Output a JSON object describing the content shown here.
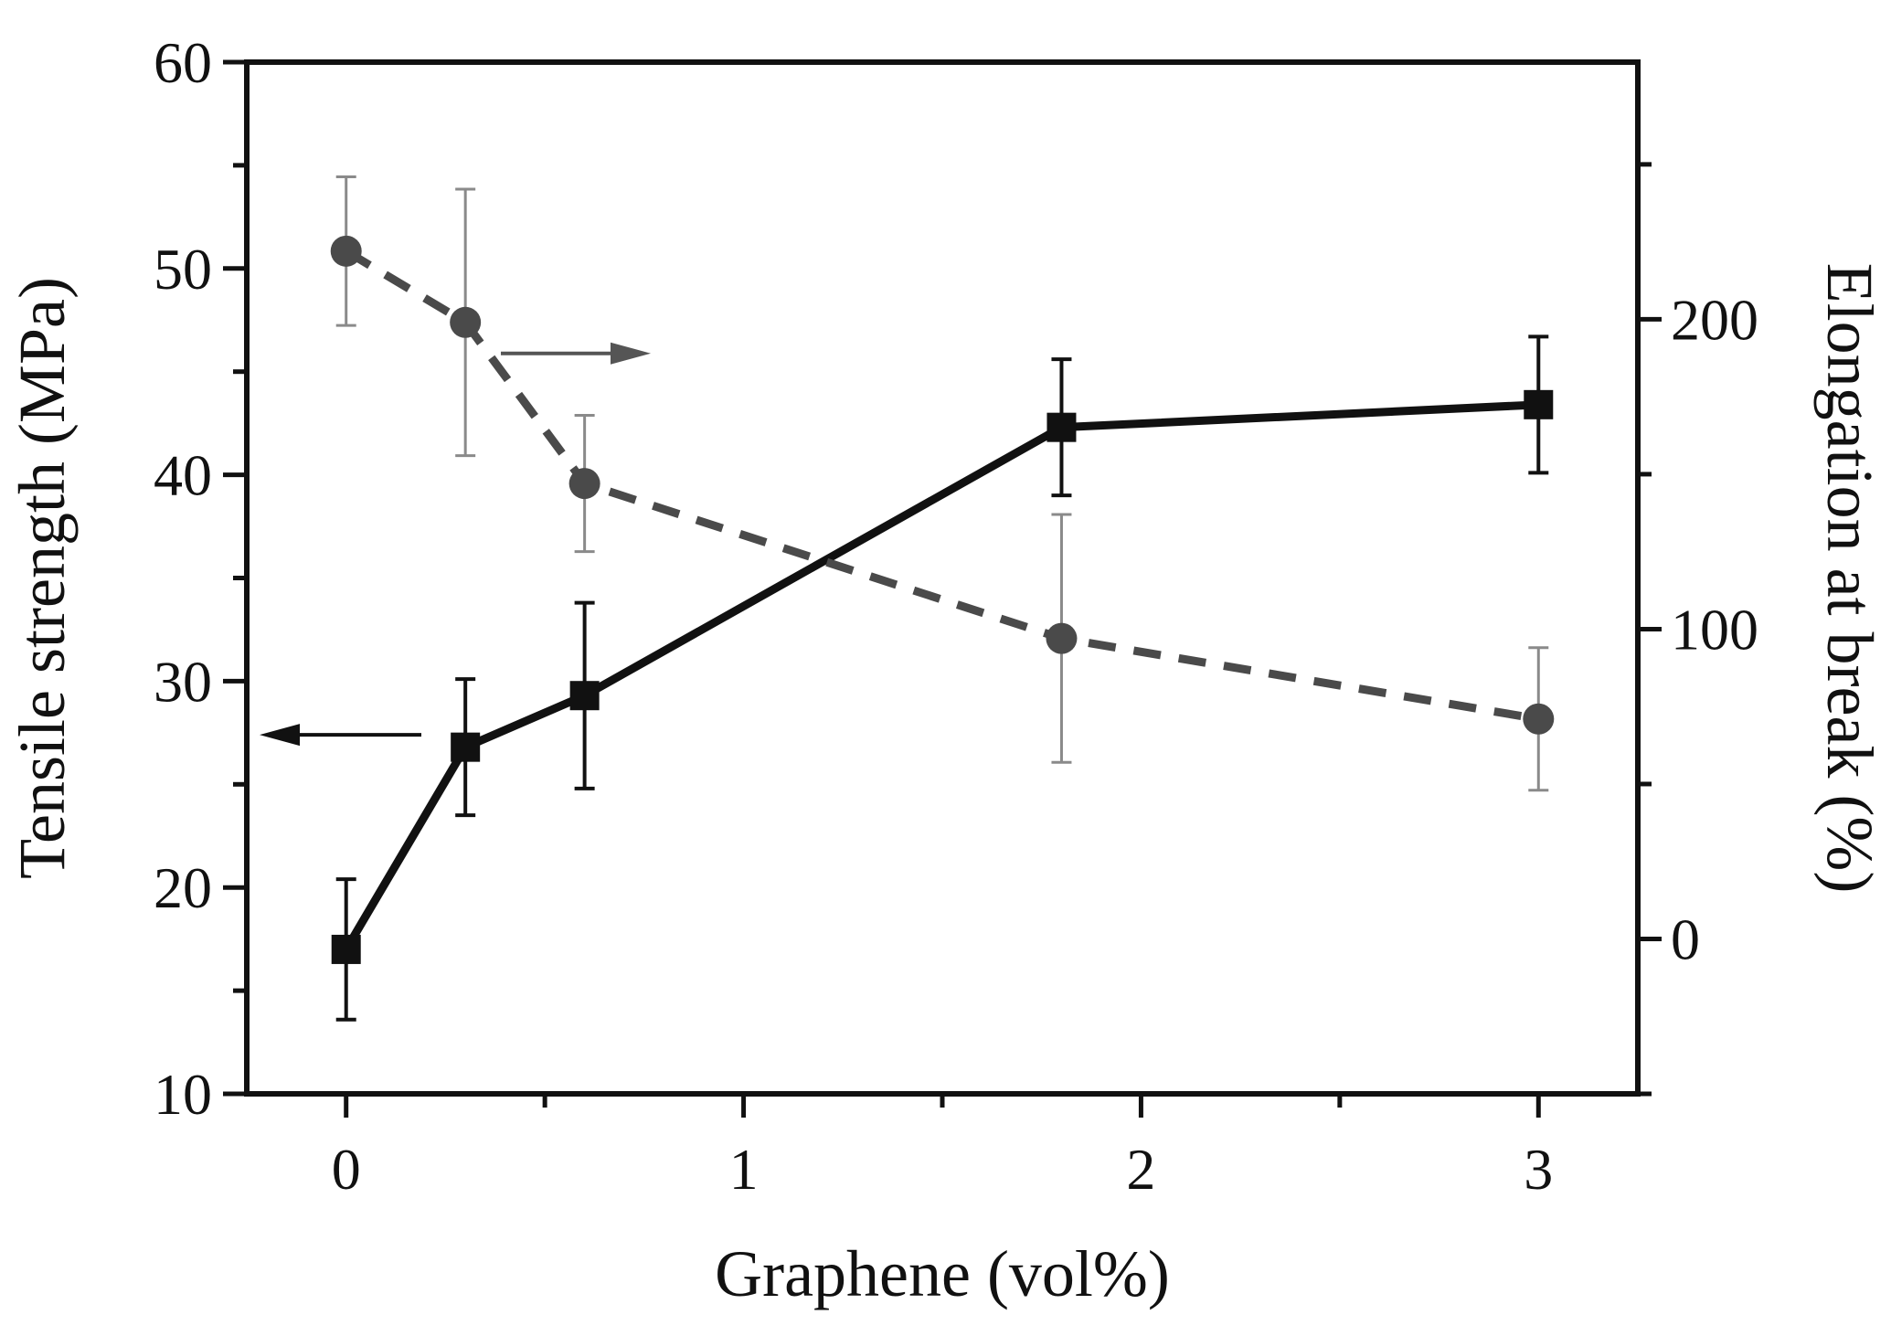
{
  "chart_data": {
    "type": "line",
    "xlabel": "Graphene (vol%)",
    "ylabel": "Tensile strength (MPa)",
    "y2label": "Elongation at break (%)",
    "xlim": [
      -0.25,
      3.25
    ],
    "ylim": [
      10,
      60
    ],
    "y2lim": [
      -50,
      283
    ],
    "x_ticks": [
      0,
      1,
      2,
      3
    ],
    "x_minor_ticks": [
      0.5,
      1.5,
      2.5
    ],
    "y_ticks": [
      10,
      20,
      30,
      40,
      50,
      60
    ],
    "y2_ticks": [
      0,
      100,
      200
    ],
    "y2_minor_ticks": [
      -50,
      50,
      150,
      250
    ],
    "series": [
      {
        "axis": "left",
        "style": "solid",
        "marker": "square",
        "color": "#111111",
        "x": [
          0,
          0.3,
          0.6,
          1.8,
          3.0
        ],
        "y": [
          17.0,
          26.8,
          29.3,
          42.3,
          43.4
        ],
        "err": [
          3.4,
          3.3,
          4.5,
          3.3,
          3.3
        ]
      },
      {
        "axis": "right",
        "style": "dashed",
        "marker": "circle",
        "color": "#4a4a4a",
        "x": [
          0,
          0.3,
          0.6,
          1.8,
          3.0
        ],
        "y": [
          222,
          199,
          147,
          97,
          71
        ],
        "err": [
          24,
          43,
          22,
          40,
          23
        ]
      }
    ],
    "annotations": [
      {
        "type": "arrow",
        "direction": "left",
        "points_to": "left-axis",
        "at_y": 27.4
      },
      {
        "type": "arrow",
        "direction": "right",
        "points_to": "right-axis",
        "at_y2": 189
      }
    ]
  }
}
